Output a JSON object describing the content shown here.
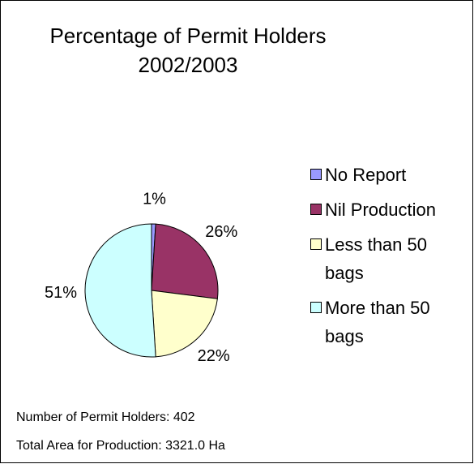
{
  "chart_data": {
    "type": "pie",
    "title": [
      "Percentage of Permit Holders",
      "2002/2003"
    ],
    "categories": [
      "No Report",
      "Nil Production",
      "Less than 50 bags",
      "More than 50 bags"
    ],
    "values": [
      1,
      26,
      22,
      51
    ],
    "value_labels": [
      "1%",
      "26%",
      "22%",
      "51%"
    ],
    "colors": [
      "#9999ff",
      "#993366",
      "#ffffcc",
      "#ccffff"
    ],
    "legend": "right",
    "annotations": [
      "Number of Permit Holders: 402",
      "Total Area for Production: 3321.0 Ha"
    ]
  }
}
